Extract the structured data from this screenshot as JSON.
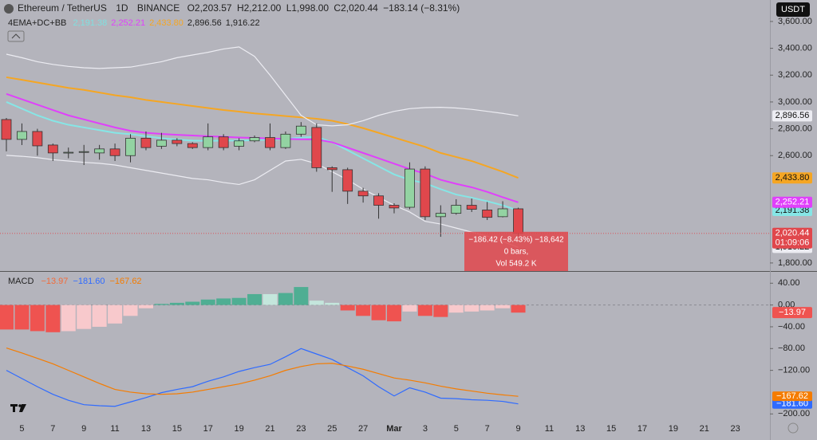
{
  "chart_data": [
    {
      "type": "candlestick",
      "title": "Ethereum / TetherUS",
      "interval": "1D",
      "exchange": "BINANCE",
      "ohlc_labels": [
        "O2,203.57",
        "H2,212.00",
        "L1,998.00",
        "C2,020.44"
      ],
      "change": "−183.14 (−8.31%)",
      "indicator": "4EMA+DC+BB",
      "currency": "USDT",
      "categories": [
        null,
        "5",
        null,
        "7",
        null,
        "9",
        null,
        "11",
        null,
        "13",
        null,
        "15",
        null,
        "17",
        null,
        "19",
        null,
        "21",
        null,
        "23",
        null,
        "25",
        null,
        "27",
        null,
        "Mar",
        null,
        "3",
        null,
        "5",
        null,
        "7",
        null,
        "9",
        null,
        "11",
        null,
        "13",
        null,
        "15",
        null,
        "17",
        null,
        "19",
        null,
        "21",
        null,
        "23",
        null
      ],
      "open": [
        2869,
        2721,
        2780,
        2679,
        2620,
        2625,
        2620,
        2650,
        2600,
        2730,
        2670,
        2715,
        2690,
        2660,
        2740,
        2670,
        2710,
        2735,
        2660,
        2760,
        2810,
        2510,
        2495,
        2335,
        2300,
        2230,
        2215,
        2500,
        2145,
        2170,
        2230,
        2195,
        2145,
        2203.57,
        null,
        null,
        null,
        null,
        null,
        null,
        null,
        null,
        null,
        null,
        null,
        null,
        null,
        null,
        null
      ],
      "high": [
        2881,
        2840,
        2800,
        2690,
        2660,
        2680,
        2680,
        2690,
        2760,
        2780,
        2770,
        2730,
        2700,
        2840,
        2760,
        2730,
        2750,
        2840,
        2780,
        2850,
        2840,
        2520,
        2510,
        2360,
        2320,
        2245,
        2550,
        2520,
        2230,
        2275,
        2280,
        2255,
        2260,
        2212,
        null,
        null,
        null,
        null,
        null,
        null,
        null,
        null,
        null,
        null,
        null,
        null,
        null,
        null,
        null
      ],
      "low": [
        2632,
        2679,
        2600,
        2560,
        2580,
        2530,
        2570,
        2560,
        2550,
        2640,
        2650,
        2670,
        2650,
        2640,
        2640,
        2640,
        2700,
        2640,
        2650,
        2740,
        2480,
        2330,
        2240,
        2250,
        2130,
        2170,
        2200,
        2120,
        1995,
        2160,
        2180,
        2120,
        2140,
        1998,
        null,
        null,
        null,
        null,
        null,
        null,
        null,
        null,
        null,
        null,
        null,
        null,
        null,
        null,
        null
      ],
      "close": [
        2721,
        2780,
        2673,
        2620,
        2625,
        2630,
        2650,
        2600,
        2730,
        2660,
        2715,
        2690,
        2660,
        2740,
        2660,
        2710,
        2735,
        2660,
        2760,
        2820,
        2510,
        2495,
        2335,
        2300,
        2230,
        2210,
        2500,
        2145,
        2170,
        2230,
        2200,
        2140,
        2203.57,
        2020.44,
        null,
        null,
        null,
        null,
        null,
        null,
        null,
        null,
        null,
        null,
        null,
        null,
        null,
        null,
        null
      ],
      "up_color": "#93d3a2",
      "down_color": "#e0474c",
      "price_label": "2,020.44",
      "countdown": "01:09:06",
      "series": [
        {
          "color": "#86e6e6",
          "header_color": "#7fe0e0",
          "tag_text_color": "#111",
          "label": "2,191.38",
          "values": [
            3000,
            2950,
            2900,
            2860,
            2830,
            2810,
            2790,
            2770,
            2760,
            2745,
            2730,
            2720,
            2712,
            2710,
            2712,
            2712,
            2715,
            2720,
            2725,
            2735,
            2740,
            2700,
            2640,
            2580,
            2520,
            2460,
            2420,
            2394,
            2350,
            2310,
            2287,
            2260,
            2230,
            2191.38,
            null,
            null,
            null,
            null,
            null,
            null,
            null,
            null,
            null,
            null,
            null,
            null,
            null,
            null,
            null
          ]
        },
        {
          "color": "#e040fb",
          "header_color": "#e040fb",
          "tag_text_color": "#fff",
          "label": "2,252.21",
          "values": [
            3060,
            3020,
            2980,
            2940,
            2900,
            2870,
            2840,
            2810,
            2785,
            2770,
            2762,
            2755,
            2750,
            2745,
            2740,
            2735,
            2732,
            2728,
            2725,
            2722,
            2720,
            2700,
            2660,
            2620,
            2580,
            2540,
            2500,
            2465,
            2420,
            2390,
            2364,
            2330,
            2290,
            2252.21,
            null,
            null,
            null,
            null,
            null,
            null,
            null,
            null,
            null,
            null,
            null,
            null,
            null,
            null,
            null
          ]
        },
        {
          "color": "#f5a623",
          "header_color": "#f5a623",
          "tag_text_color": "#111",
          "label": "2,433.80",
          "values": [
            3184,
            3165,
            3145,
            3125,
            3105,
            3090,
            3070,
            3050,
            3035,
            3015,
            3000,
            2985,
            2970,
            2955,
            2940,
            2928,
            2915,
            2905,
            2895,
            2885,
            2875,
            2860,
            2835,
            2805,
            2770,
            2735,
            2700,
            2665,
            2620,
            2590,
            2560,
            2520,
            2480,
            2433.8,
            null,
            null,
            null,
            null,
            null,
            null,
            null,
            null,
            null,
            null,
            null,
            null,
            null,
            null,
            null
          ]
        },
        {
          "color": "#ececf2",
          "header_color": "#222",
          "tag_text_color": "#111",
          "label": "2,896.56",
          "values": [
            3356,
            3330,
            3300,
            3280,
            3265,
            3255,
            3250,
            3255,
            3260,
            3280,
            3300,
            3330,
            3350,
            3370,
            3395,
            3410,
            3340,
            3200,
            3050,
            2900,
            2830,
            2822,
            2830,
            2860,
            2900,
            2930,
            2950,
            2958,
            2960,
            2955,
            2945,
            2930,
            2915,
            2896.56,
            null,
            null,
            null,
            null,
            null,
            null,
            null,
            null,
            null,
            null,
            null,
            null,
            null,
            null,
            null
          ]
        },
        {
          "color": "#ececf2",
          "header_color": "#222",
          "tag_text_color": "#111",
          "label": "1,916.22",
          "values": [
            2602,
            2595,
            2585,
            2570,
            2560,
            2550,
            2543,
            2530,
            2510,
            2490,
            2470,
            2450,
            2430,
            2420,
            2400,
            2385,
            2420,
            2490,
            2560,
            2572,
            2540,
            2480,
            2420,
            2350,
            2290,
            2230,
            2180,
            2110,
            2090,
            2060,
            2030,
            2000,
            1960,
            1916.22,
            null,
            null,
            null,
            null,
            null,
            null,
            null,
            null,
            null,
            null,
            null,
            null,
            null,
            null,
            null
          ]
        }
      ],
      "tooltip": [
        "−186.42 (−8.43%) −18,642",
        "0 bars,",
        "Vol 549.2 K"
      ],
      "ylim": [
        1740,
        3760
      ],
      "yticks": [
        {
          "value": 3600,
          "label": "3,600.00"
        },
        {
          "value": 3400,
          "label": "3,400.00"
        },
        {
          "value": 3200,
          "label": "3,200.00"
        },
        {
          "value": 3000,
          "label": "3,000.00"
        },
        {
          "value": 2800,
          "label": "2,800.00"
        },
        {
          "value": 2600,
          "label": "2,600.00"
        },
        {
          "value": 1800,
          "label": "1,800.00"
        }
      ]
    },
    {
      "type": "macd",
      "title": "MACD",
      "values": [
        -45,
        -45,
        -48,
        -50,
        -48,
        -44,
        -40,
        -34,
        -20,
        -6,
        2,
        4,
        6,
        10,
        12,
        13,
        20,
        20,
        22,
        33,
        8,
        4,
        -10,
        -20,
        -28,
        -30,
        -12,
        -20,
        -22,
        -14,
        -12,
        -10,
        -6,
        -13.97,
        null,
        null,
        null,
        null,
        null,
        null,
        null,
        null,
        null,
        null,
        null,
        null,
        null,
        null,
        null
      ],
      "value_label": "−13.97",
      "hist_colors": {
        "pos_rising": "#4fae93",
        "pos_falling": "#c4e6dc",
        "neg_rising": "#f8c9cc",
        "neg_falling": "#ef5350"
      },
      "label_color": "#f26b3a",
      "series": [
        {
          "color": "#2f6bff",
          "label": "−181.60",
          "values": [
            -120,
            -135,
            -150,
            -164,
            -175,
            -183,
            -185,
            -186,
            -178,
            -170,
            -161,
            -155,
            -150,
            -140,
            -132,
            -122,
            -115,
            -109,
            -95,
            -80,
            -90,
            -100,
            -115,
            -130,
            -150,
            -167,
            -152,
            -160,
            -171,
            -172,
            -174,
            -175,
            -177,
            -181.6,
            null,
            null,
            null,
            null,
            null,
            null,
            null,
            null,
            null,
            null,
            null,
            null,
            null,
            null,
            null
          ]
        },
        {
          "color": "#f57c00",
          "label": "−167.62",
          "values": [
            -79,
            -88,
            -98,
            -108,
            -120,
            -132,
            -144,
            -155,
            -160,
            -163,
            -164,
            -163,
            -160,
            -155,
            -150,
            -145,
            -138,
            -130,
            -120,
            -113,
            -108,
            -107,
            -112,
            -118,
            -126,
            -134,
            -138,
            -143,
            -149,
            -154,
            -158,
            -162,
            -165,
            -167.62,
            null,
            null,
            null,
            null,
            null,
            null,
            null,
            null,
            null,
            null,
            null,
            null,
            null,
            null,
            null
          ]
        }
      ],
      "ylim": [
        -223,
        58
      ],
      "yticks": [
        {
          "value": 40,
          "label": "40.00"
        },
        {
          "value": 0,
          "label": "0.00"
        },
        {
          "value": -40,
          "label": "−40.00"
        },
        {
          "value": -80,
          "label": "−80.00"
        },
        {
          "value": -120,
          "label": "−120.00"
        },
        {
          "value": -200,
          "label": "−200.00"
        }
      ]
    }
  ]
}
